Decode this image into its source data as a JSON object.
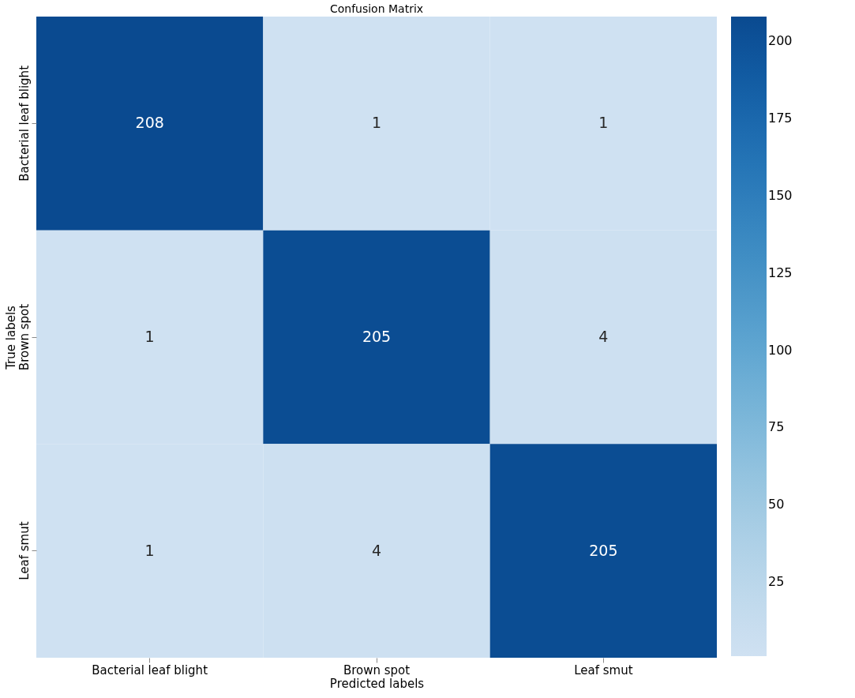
{
  "chart_data": {
    "type": "heatmap",
    "title": "Confusion Matrix",
    "xlabel": "Predicted labels",
    "ylabel": "True labels",
    "categories": [
      "Bacterial leaf blight",
      "Brown spot",
      "Leaf smut"
    ],
    "y_categories": [
      "Bacterial leaf blight",
      "Brown spot",
      "Leaf smut"
    ],
    "cells": [
      [
        208,
        1,
        1
      ],
      [
        1,
        205,
        4
      ],
      [
        1,
        4,
        205
      ]
    ],
    "clim": [
      1,
      208
    ],
    "cticks": [
      25,
      50,
      75,
      100,
      125,
      150,
      175,
      200
    ],
    "data_labels": true
  }
}
